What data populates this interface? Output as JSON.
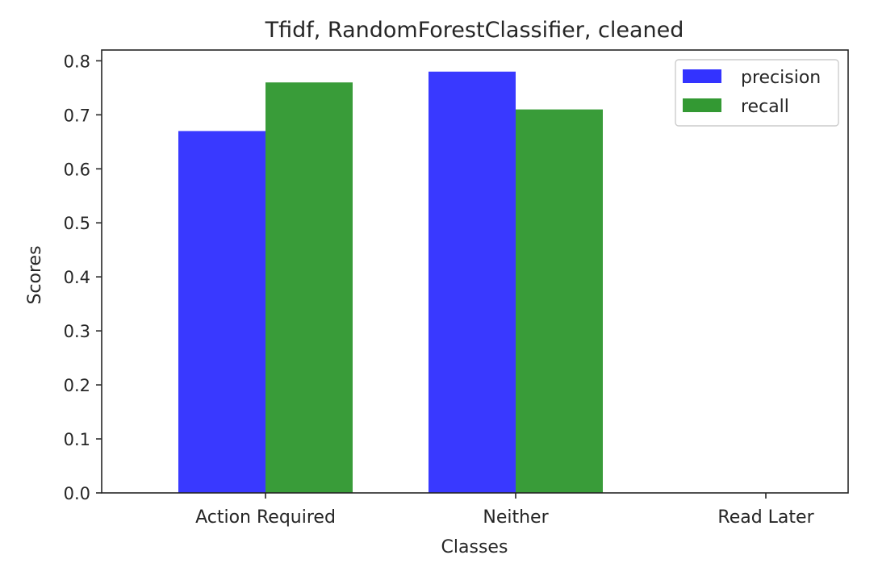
{
  "chart_data": {
    "type": "bar",
    "title": "Tfidf, RandomForestClassifier, cleaned",
    "xlabel": "Classes",
    "ylabel": "Scores",
    "categories": [
      "Action Required",
      "Neither",
      "Read Later"
    ],
    "series": [
      {
        "name": "precision",
        "values": [
          0.67,
          0.78,
          0.0
        ],
        "color": "#3333ff"
      },
      {
        "name": "recall",
        "values": [
          0.76,
          0.71,
          0.0
        ],
        "color": "#339933"
      }
    ],
    "ylim": [
      0,
      0.82
    ],
    "yticks": [
      0.0,
      0.1,
      0.2,
      0.3,
      0.4,
      0.5,
      0.6,
      0.7,
      0.8
    ],
    "ytick_labels": [
      "0.0",
      "0.1",
      "0.2",
      "0.3",
      "0.4",
      "0.5",
      "0.6",
      "0.7",
      "0.8"
    ],
    "grid": false,
    "legend_position": "top-right"
  }
}
